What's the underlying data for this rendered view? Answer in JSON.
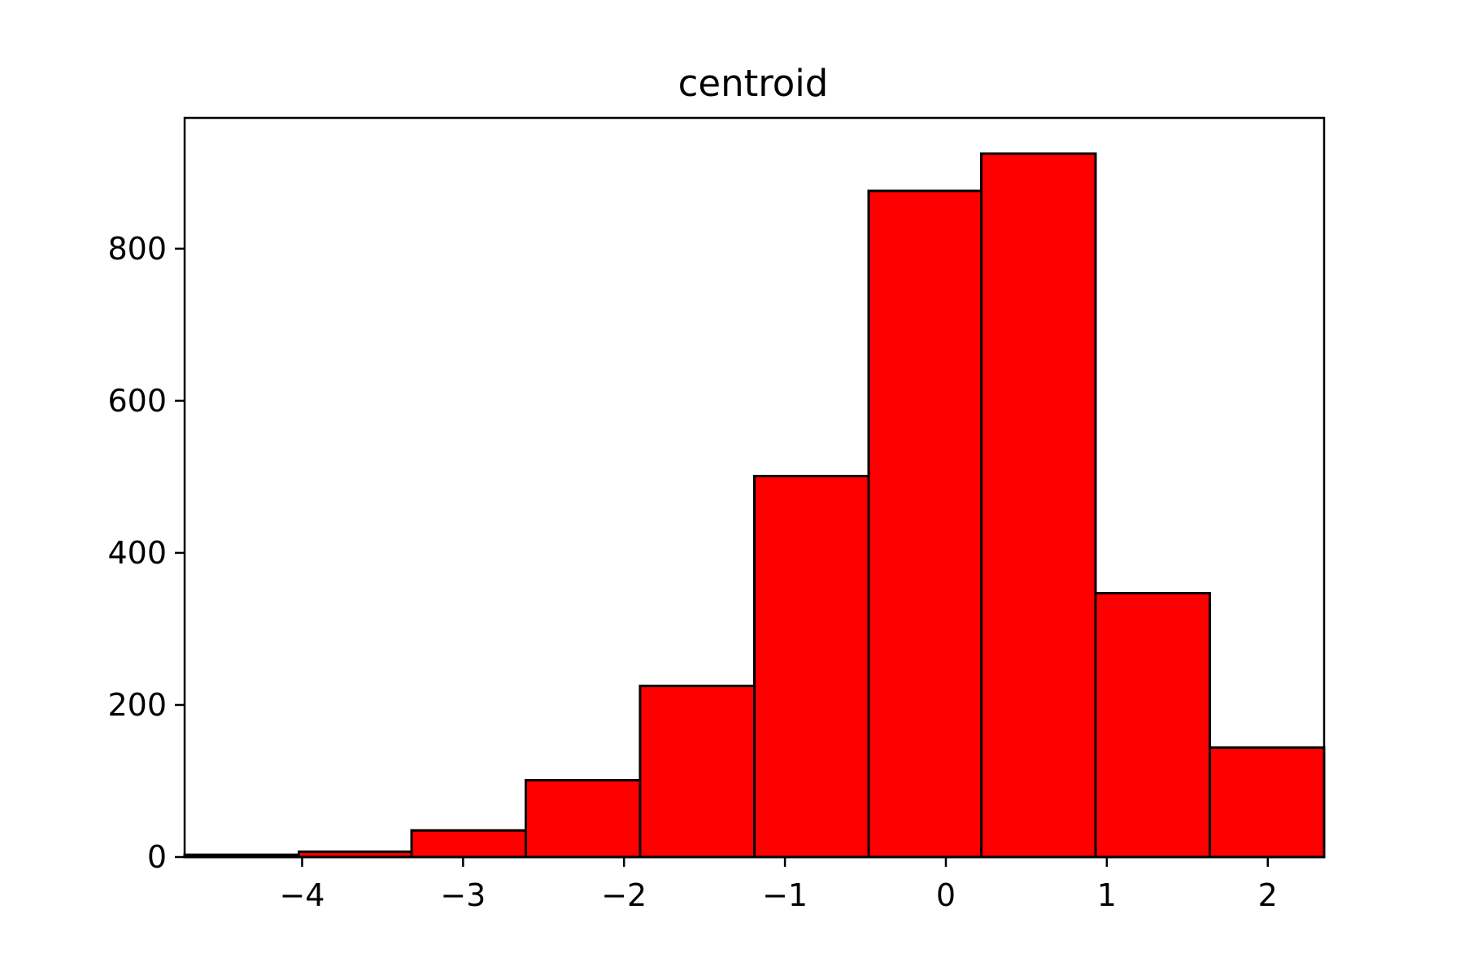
{
  "chart_data": {
    "type": "bar",
    "title": "centroid",
    "xlabel": "",
    "ylabel": "",
    "bins": [
      {
        "x0": -4.73,
        "x1": -4.02,
        "count": 3
      },
      {
        "x0": -4.02,
        "x1": -3.32,
        "count": 7
      },
      {
        "x0": -3.32,
        "x1": -2.61,
        "count": 35
      },
      {
        "x0": -2.61,
        "x1": -1.9,
        "count": 101
      },
      {
        "x0": -1.9,
        "x1": -1.19,
        "count": 225
      },
      {
        "x0": -1.19,
        "x1": -0.48,
        "count": 501
      },
      {
        "x0": -0.48,
        "x1": 0.22,
        "count": 876
      },
      {
        "x0": 0.22,
        "x1": 0.93,
        "count": 925
      },
      {
        "x0": 0.93,
        "x1": 1.64,
        "count": 347
      },
      {
        "x0": 1.64,
        "x1": 2.35,
        "count": 144
      }
    ],
    "xlim": [
      -4.73,
      2.35
    ],
    "ylim": [
      0,
      972
    ],
    "xticks": [
      -4,
      -3,
      -2,
      -1,
      0,
      1,
      2
    ],
    "xtick_labels": [
      "−4",
      "−3",
      "−2",
      "−1",
      "0",
      "1",
      "2"
    ],
    "yticks": [
      0,
      200,
      400,
      600,
      800
    ],
    "ytick_labels": [
      "0",
      "200",
      "400",
      "600",
      "800"
    ],
    "grid": false,
    "legend": "none",
    "colors": {
      "bar_fill": "#ff0000",
      "bar_edge": "#000000",
      "axes": "#000000",
      "background": "#ffffff"
    }
  }
}
